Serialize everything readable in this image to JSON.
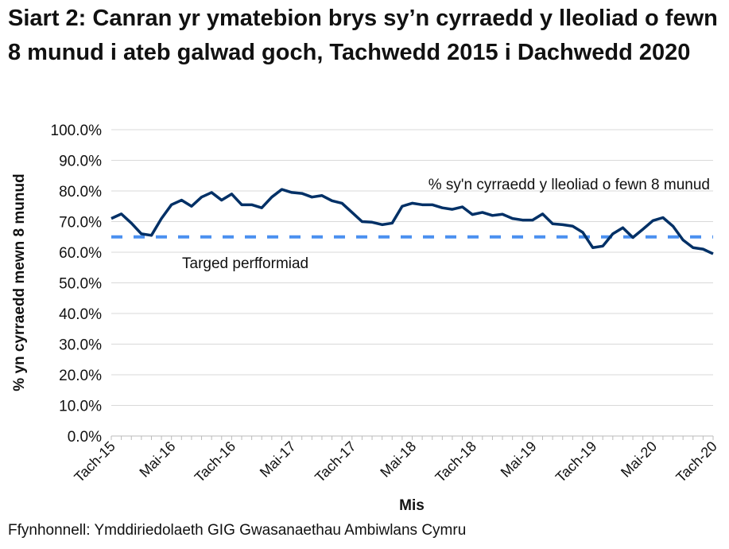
{
  "title": "Siart 2: Canran yr ymatebion brys sy’n cyrraedd y lleoliad o fewn 8 munud i ateb galwad goch, Tachwedd 2015 i Dachwedd 2020",
  "source": "Ffynhonnell: Ymddiriedolaeth GIG Gwasanaethau Ambiwlans Cymru",
  "chart_data": {
    "type": "line",
    "xlabel": "Mis",
    "ylabel": "% yn cyrraedd mewn 8 munud",
    "ylim": [
      0,
      100
    ],
    "yticks": [
      "0.0%",
      "10.0%",
      "20.0%",
      "30.0%",
      "40.0%",
      "50.0%",
      "60.0%",
      "70.0%",
      "80.0%",
      "90.0%",
      "100.0%"
    ],
    "xticks": [
      "Tach-15",
      "Mai-16",
      "Tach-16",
      "Mai-17",
      "Tach-17",
      "Mai-18",
      "Tach-18",
      "Mai-19",
      "Tach-19",
      "Mai-20",
      "Tach-20"
    ],
    "grid": true,
    "series": [
      {
        "name": "% sy'n cyrraedd y lleoliad o fewn 8 munud",
        "color": "#003066",
        "values": [
          71,
          72.5,
          69.5,
          66,
          65.5,
          71,
          75.5,
          77,
          75,
          78,
          79.5,
          77,
          79,
          75.5,
          75.5,
          74.5,
          78,
          80.5,
          79.5,
          79.2,
          78,
          78.5,
          76.8,
          76,
          73,
          70,
          69.8,
          69,
          69.5,
          75,
          76,
          75.5,
          75.5,
          74.5,
          74,
          74.8,
          72.3,
          73,
          72,
          72.4,
          71,
          70.5,
          70.5,
          72.5,
          69.3,
          69,
          68.5,
          66.5,
          61.5,
          62,
          66,
          68,
          64.8,
          67.5,
          70.3,
          71.3,
          68.5,
          64,
          61.5,
          61,
          59.5
        ]
      },
      {
        "name": "Targed perfformiad",
        "color": "#4a90f0",
        "constant": 65,
        "style": "dashed"
      }
    ]
  }
}
